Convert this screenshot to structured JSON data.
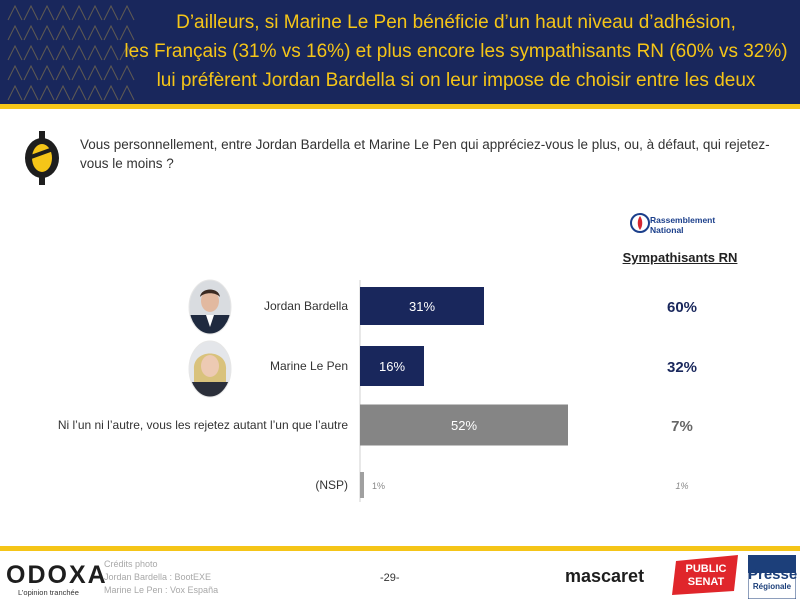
{
  "header": {
    "title_lines": [
      "D’ailleurs, si Marine Le Pen bénéficie d’un haut niveau d’adhésion,",
      "les Français (31% vs 16%) et plus encore les sympathisants RN (60% vs 32%)",
      "lui préfèrent Jordan Bardella si on leur impose de choisir entre les deux"
    ]
  },
  "question": "Vous personnellement, entre Jordan Bardella et Marine Le Pen qui appréciez-vous le plus, ou, à défaut, qui rejetez-vous le moins ?",
  "segment": {
    "party_logo_line1": "Rassemblement",
    "party_logo_line2": "National",
    "header": "Sympathisants RN"
  },
  "chart_data": {
    "type": "bar",
    "orientation": "horizontal",
    "categories": [
      "Jordan Bardella",
      "Marine Le Pen",
      "Ni l’un ni l’autre, vous les rejetez autant l’un que l’autre",
      "(NSP)"
    ],
    "series": [
      {
        "values": [
          31,
          16,
          52,
          1
        ],
        "labels": [
          "31%",
          "16%",
          "52%",
          "1%"
        ]
      }
    ],
    "segment_series": {
      "name": "Sympathisants RN",
      "values": [
        60,
        32,
        7,
        1
      ],
      "labels": [
        "60%",
        "32%",
        "7%",
        "1%"
      ]
    },
    "colors": {
      "main": "#19275c",
      "rejection": "#858585",
      "nsp": "#a0a0a0",
      "segment_strong": "#19275c",
      "segment_muted": "#666666"
    }
  },
  "footer": {
    "brand": "ODOXA",
    "tagline": "L’opinion tranchée",
    "credits": [
      "Crédits photo",
      "Jordan Bardella : BootEXE",
      "Marine Le Pen : Vox España"
    ],
    "page": "-29-",
    "partner1": "mascaret",
    "partner2_line1": "PUBLIC",
    "partner2_line2": "SENAT",
    "partner3_line1": "Presse",
    "partner3_line2": "Régionale"
  },
  "colors": {
    "navy": "#19275c",
    "gold": "#f5c518"
  }
}
